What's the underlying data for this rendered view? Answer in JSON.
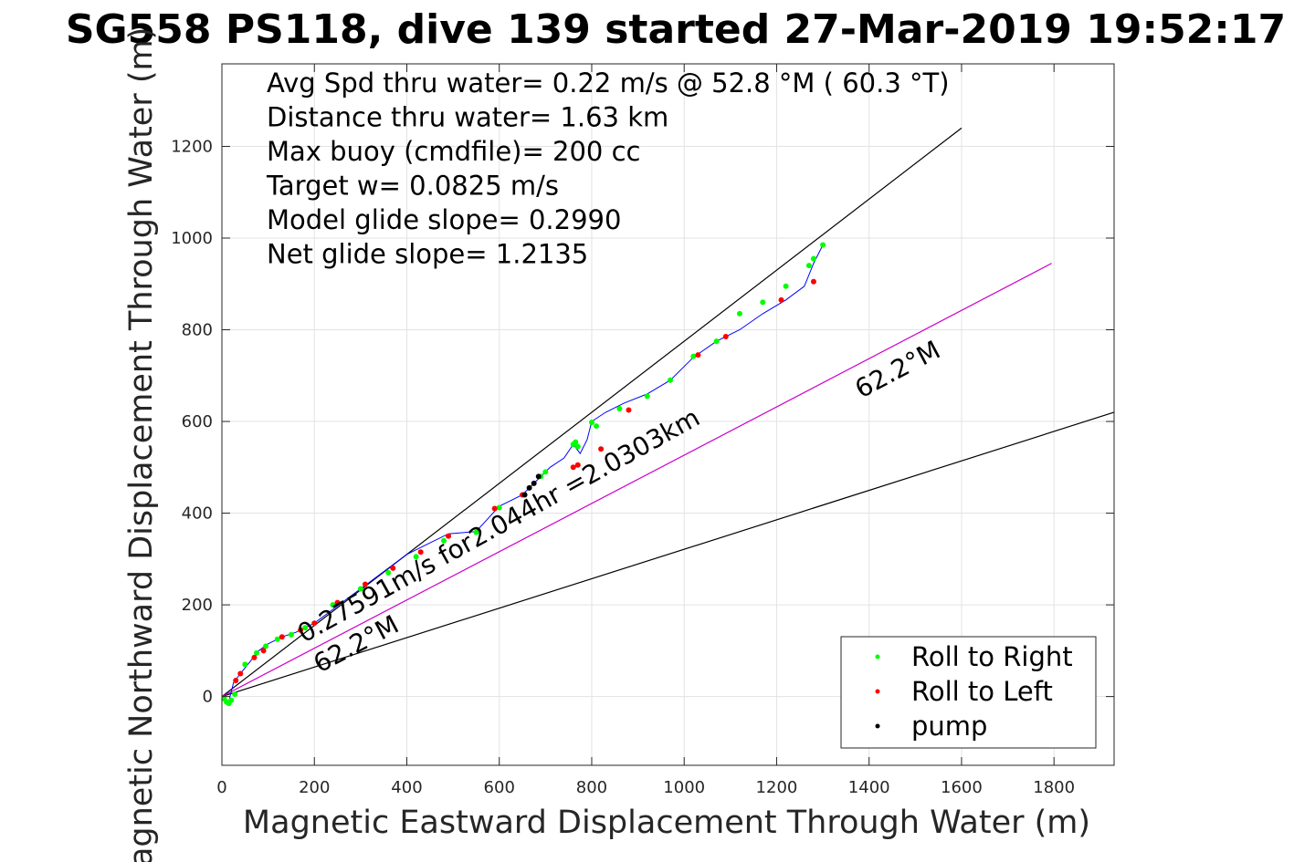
{
  "chart_data": {
    "type": "scatter",
    "title": "SG558 PS118, dive 139 started 27-Mar-2019 19:52:17",
    "xlabel": "Magnetic Eastward Displacement Through Water (m)",
    "ylabel": "Magnetic Northward Displacement Through Water (m)",
    "xlim": [
      0,
      1930
    ],
    "ylim": [
      -150,
      1380
    ],
    "xticks": [
      0,
      200,
      400,
      600,
      800,
      1000,
      1200,
      1400,
      1600,
      1800
    ],
    "yticks": [
      0,
      200,
      400,
      600,
      800,
      1000,
      1200
    ],
    "grid": true,
    "legend_position": "bottom-right",
    "annotations": [
      "Avg Spd thru water=  0.22 m/s @  52.8 °M ( 60.3 °T)",
      "Distance thru water=  1.63 km",
      "Max buoy (cmdfile)= 200 cc",
      "Target w= 0.0825 m/s",
      "Model glide slope= 0.2990",
      "Net glide slope= 1.2135"
    ],
    "line_labels": {
      "current": "0.27591m/s for2.044hr =2.0303km",
      "heading_upper": "62.2°M",
      "heading_lower": "62.2°M"
    },
    "reference_lines": [
      {
        "color": "#000000",
        "x": [
          0,
          1600
        ],
        "y": [
          0,
          1240
        ]
      },
      {
        "color": "#000000",
        "x": [
          0,
          1930
        ],
        "y": [
          0,
          620
        ]
      },
      {
        "color": "#cc00cc",
        "x": [
          0,
          1795
        ],
        "y": [
          0,
          945
        ]
      }
    ],
    "track": {
      "color": "#0000ff",
      "x": [
        15,
        25,
        40,
        60,
        80,
        100,
        130,
        160,
        200,
        240,
        280,
        320,
        360,
        400,
        440,
        490,
        550,
        600,
        650,
        690,
        710,
        740,
        760,
        775,
        790,
        800,
        830,
        870,
        920,
        970,
        1020,
        1070,
        1120,
        1170,
        1220,
        1260,
        1280,
        1300
      ],
      "y": [
        -10,
        30,
        50,
        75,
        100,
        115,
        130,
        140,
        160,
        190,
        220,
        250,
        280,
        310,
        330,
        355,
        360,
        415,
        440,
        480,
        500,
        520,
        550,
        530,
        560,
        600,
        620,
        640,
        660,
        690,
        740,
        775,
        800,
        835,
        865,
        895,
        945,
        985
      ]
    },
    "series": [
      {
        "name": "Roll to Right",
        "color": "#00ff00",
        "x": [
          5,
          10,
          15,
          20,
          28,
          50,
          75,
          95,
          120,
          150,
          180,
          240,
          300,
          360,
          420,
          480,
          550,
          600,
          690,
          700,
          760,
          765,
          770,
          800,
          810,
          860,
          920,
          970,
          1020,
          1070,
          1120,
          1170,
          1220,
          1270,
          1280,
          1300
        ],
        "y": [
          -5,
          -12,
          -15,
          -8,
          5,
          70,
          95,
          110,
          125,
          135,
          150,
          200,
          235,
          270,
          305,
          340,
          358,
          412,
          480,
          490,
          550,
          555,
          545,
          598,
          590,
          628,
          655,
          690,
          742,
          775,
          835,
          860,
          895,
          940,
          955,
          985
        ]
      },
      {
        "name": "Roll to Left",
        "color": "#ff0000",
        "x": [
          30,
          40,
          70,
          90,
          130,
          170,
          200,
          250,
          310,
          370,
          430,
          490,
          590,
          650,
          760,
          770,
          820,
          880,
          1030,
          1090,
          1210,
          1280
        ],
        "y": [
          35,
          50,
          85,
          100,
          130,
          145,
          160,
          205,
          245,
          280,
          315,
          350,
          410,
          440,
          500,
          505,
          540,
          625,
          745,
          785,
          865,
          905
        ]
      },
      {
        "name": "pump",
        "color": "#000000",
        "x": [
          655,
          665,
          675,
          685
        ],
        "y": [
          440,
          455,
          465,
          480
        ]
      }
    ]
  }
}
